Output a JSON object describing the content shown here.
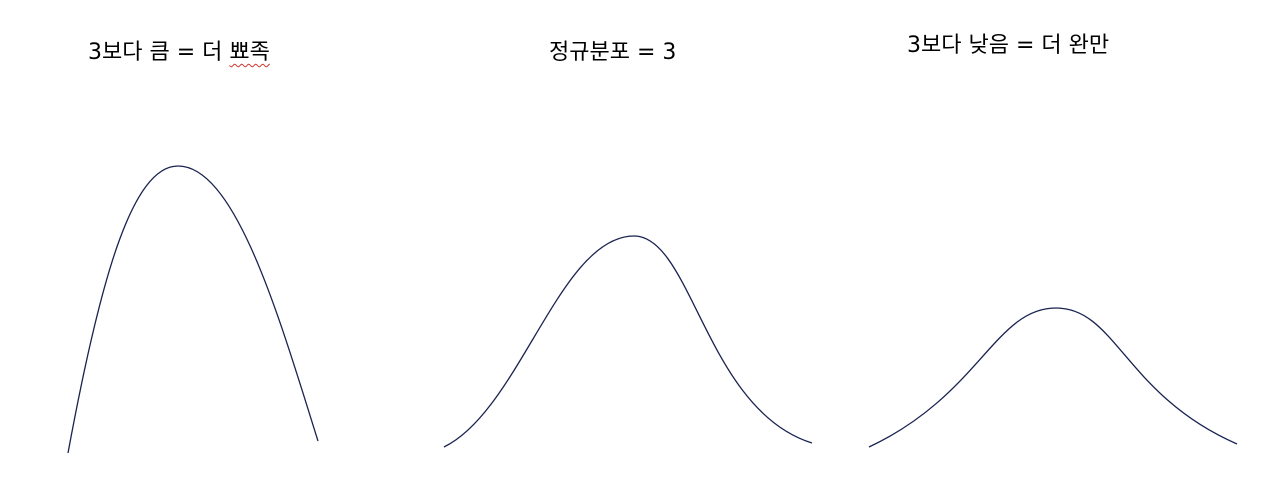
{
  "labels": {
    "leptokurtic_prefix": "3보다 큼 = 더 ",
    "leptokurtic_marked": "뾰족",
    "normal": "정규분포 = 3",
    "platykurtic": "3보다 낮음 = 더 완만"
  },
  "colors": {
    "curve": "#1a2350",
    "spellcheck_underline": "#d0342c"
  }
}
